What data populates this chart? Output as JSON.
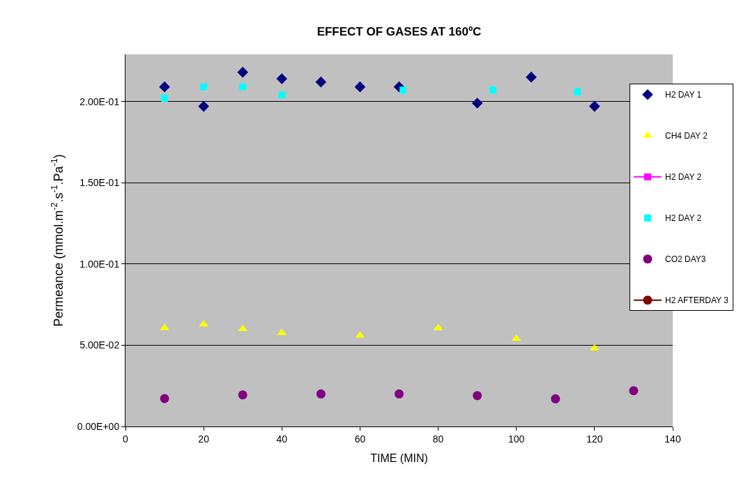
{
  "chart_data": {
    "type": "scatter",
    "title": "EFFECT OF GASES AT 160ºC",
    "xlabel": "TIME (MIN)",
    "ylabel": "Permeance (mmol.m$^{-2}$.s$^{-1}$.Pa$^{-1}$)",
    "xlim": [
      0,
      140
    ],
    "xticks": [
      0,
      20,
      40,
      60,
      80,
      100,
      120,
      140
    ],
    "ylim": [
      0,
      0.229
    ],
    "yticks": [
      {
        "value": 0,
        "label": "0.00E+00"
      },
      {
        "value": 0.05,
        "label": "5.00E-02"
      },
      {
        "value": 0.1,
        "label": "1.00E-01"
      },
      {
        "value": 0.15,
        "label": "1.50E-01"
      },
      {
        "value": 0.2,
        "label": "2.00E-01"
      }
    ],
    "grid": "y",
    "legend": "right",
    "series": [
      {
        "name": "H2 DAY 1",
        "color": "#000080",
        "marker": "diamond",
        "x": [
          10,
          20,
          30,
          40,
          50,
          60,
          70,
          90,
          103.8,
          120
        ],
        "values": [
          0.209,
          0.197,
          0.218,
          0.214,
          0.212,
          0.209,
          0.209,
          0.199,
          0.215,
          0.197
        ]
      },
      {
        "name": "CH4 DAY 2",
        "color": "#ffff00",
        "marker": "triangle",
        "x": [
          10,
          20,
          30,
          40,
          60,
          80,
          100,
          120
        ],
        "values": [
          0.0606,
          0.0628,
          0.06,
          0.0576,
          0.056,
          0.0606,
          0.054,
          0.048
        ]
      },
      {
        "name": "H2 DAY 2",
        "color": "#ff00ff",
        "marker": "square",
        "type": "line",
        "line_style": "solid"
      },
      {
        "name": "H2 DAY 2",
        "color": "#00ffff",
        "marker": "square",
        "x": [
          10,
          20,
          30,
          40,
          71,
          94,
          115.6
        ],
        "values": [
          0.202,
          0.209,
          0.209,
          0.204,
          0.207,
          0.207,
          0.206
        ]
      },
      {
        "name": "CO2 DAY3",
        "color": "#800080",
        "marker": "circle",
        "x": [
          10,
          30,
          50,
          70,
          90,
          110,
          130
        ],
        "values": [
          0.0172,
          0.0194,
          0.02,
          0.02,
          0.019,
          0.017,
          0.022
        ]
      },
      {
        "name": "H2 AFTERDAY 3",
        "color": "#800000",
        "marker": "circle",
        "type": "line",
        "line_style": "solid"
      }
    ]
  }
}
